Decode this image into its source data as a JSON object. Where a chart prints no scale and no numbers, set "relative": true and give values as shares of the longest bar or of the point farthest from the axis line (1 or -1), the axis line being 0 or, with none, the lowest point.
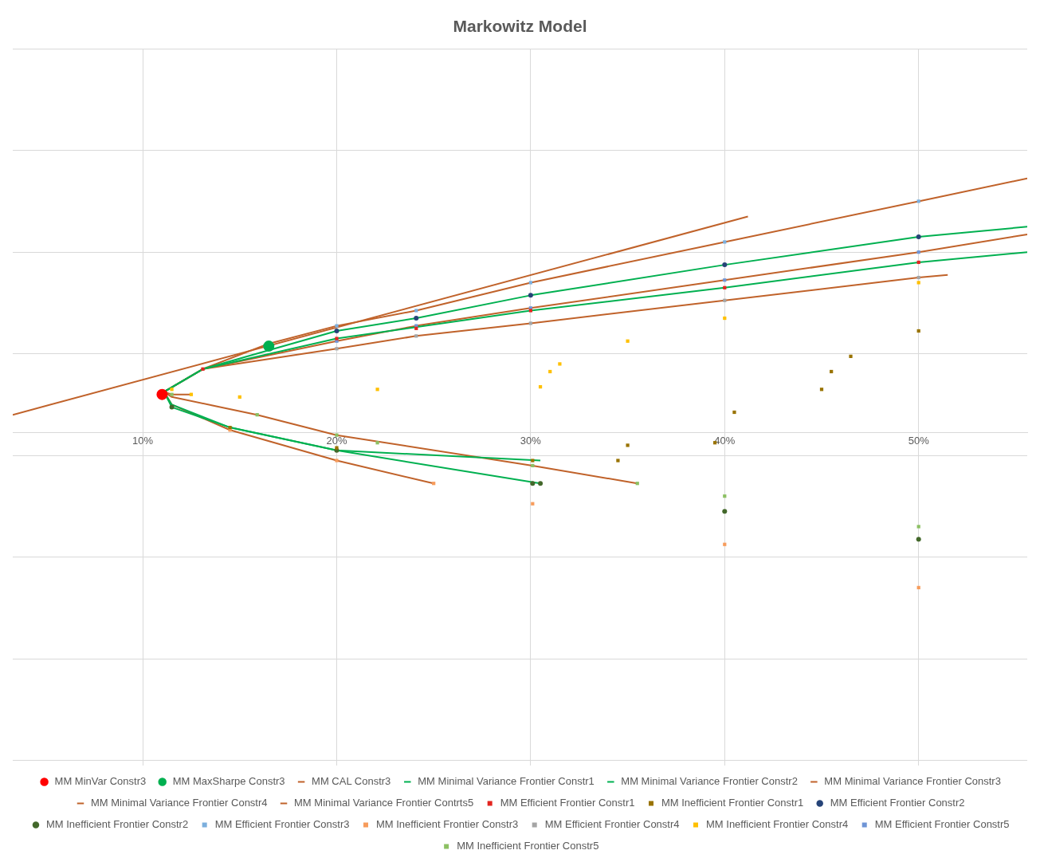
{
  "chart_data": {
    "type": "scatter",
    "title": "Markowitz Model",
    "relative": true,
    "xlim": [
      3.3,
      55.6
    ],
    "xticks": [
      {
        "value": 10,
        "label": "10%"
      },
      {
        "value": 20,
        "label": "20%"
      },
      {
        "value": 30,
        "label": "30%"
      },
      {
        "value": 40,
        "label": "40%"
      },
      {
        "value": 50,
        "label": "50%"
      }
    ],
    "tick_labels": "x",
    "grid": true,
    "legend": "bottom",
    "series": [
      {
        "name": "MM MinVar Constr3",
        "type": "scatter",
        "marker": "circle",
        "color": "#ff0000",
        "x": [
          11.0
        ],
        "values": [
          0.15
        ]
      },
      {
        "name": "MM MaxSharpe Constr3",
        "type": "scatter",
        "marker": "circle",
        "color": "#00b050",
        "x": [
          16.5
        ],
        "values": [
          0.34
        ]
      },
      {
        "name": "MM CAL Constr3",
        "type": "line",
        "line_style": "solid",
        "color": "#c0622a",
        "x": [
          3.3,
          41.2
        ],
        "values": [
          0.07,
          0.85
        ]
      },
      {
        "name": "MM Minimal Variance Frontier Constr1",
        "type": "line",
        "line_style": "solid",
        "color": "#00b050",
        "x": [
          30.5,
          20.0,
          14.5,
          11.5,
          11.1,
          13.1,
          20.0,
          30.0,
          40.0,
          50.0,
          55.6
        ],
        "values": [
          -0.11,
          -0.07,
          0.02,
          0.11,
          0.16,
          0.25,
          0.37,
          0.48,
          0.57,
          0.67,
          0.71
        ]
      },
      {
        "name": "MM Minimal Variance Frontier Constr2",
        "type": "line",
        "line_style": "solid",
        "color": "#00b050",
        "x": [
          30.5,
          20.0,
          14.5,
          11.5,
          11.1,
          13.1,
          20.0,
          24.1,
          30.0,
          40.0,
          50.0,
          55.6
        ],
        "values": [
          -0.2,
          -0.07,
          0.02,
          0.1,
          0.16,
          0.25,
          0.4,
          0.45,
          0.54,
          0.66,
          0.77,
          0.81
        ]
      },
      {
        "name": "MM Minimal Variance Frontier Constr3",
        "type": "line",
        "line_style": "solid",
        "color": "#c0622a",
        "x": [
          25.0,
          20.0,
          14.5,
          11.5,
          11.1,
          13.1,
          16.5,
          20.0,
          24.1,
          30.0,
          40.0,
          50.0,
          55.6
        ],
        "values": [
          -0.2,
          -0.11,
          0.01,
          0.11,
          0.16,
          0.25,
          0.35,
          0.42,
          0.48,
          0.59,
          0.75,
          0.91,
          1.0
        ]
      },
      {
        "name": "MM Minimal Variance Frontier Constr4",
        "type": "line",
        "line_style": "solid",
        "color": "#c0622a",
        "x": [
          12.5,
          11.5,
          11.1,
          13.1,
          20.0,
          24.1,
          30.0,
          40.0,
          50.0,
          51.5
        ],
        "values": [
          0.15,
          0.15,
          0.16,
          0.25,
          0.33,
          0.38,
          0.43,
          0.52,
          0.61,
          0.62
        ]
      },
      {
        "name": "MM Minimal Variance Frontier Contrts5",
        "type": "line",
        "line_style": "solid",
        "color": "#c0622a",
        "x": [
          35.5,
          30.1,
          20.0,
          15.9,
          11.5,
          11.1,
          13.1,
          20.0,
          24.1,
          30.0,
          40.0,
          50.0,
          55.6
        ],
        "values": [
          -0.2,
          -0.13,
          -0.01,
          0.07,
          0.14,
          0.16,
          0.25,
          0.36,
          0.42,
          0.49,
          0.6,
          0.71,
          0.78
        ]
      },
      {
        "name": "MM Efficient Frontier Constr1",
        "type": "scatter",
        "marker": "square",
        "color": "#e3251f",
        "x": [
          13.1,
          20.0,
          24.1,
          30.0,
          40.0,
          50.0
        ],
        "values": [
          0.25,
          0.37,
          0.41,
          0.48,
          0.57,
          0.67
        ]
      },
      {
        "name": "MM Inefficient Frontier Constr1",
        "type": "scatter",
        "marker": "square",
        "color": "#997300",
        "x": [
          14.5,
          20.0,
          30.1,
          34.5,
          35.0,
          39.5,
          40.5,
          45.0,
          45.5,
          46.5,
          50.0
        ],
        "values": [
          0.02,
          -0.06,
          -0.11,
          -0.11,
          -0.05,
          -0.04,
          0.08,
          0.17,
          0.24,
          0.3,
          0.4
        ]
      },
      {
        "name": "MM Efficient Frontier Constr2",
        "type": "scatter",
        "marker": "circle",
        "color": "#264478",
        "x": [
          20.0,
          24.1,
          30.0,
          40.0,
          50.0
        ],
        "values": [
          0.4,
          0.45,
          0.54,
          0.66,
          0.77
        ]
      },
      {
        "name": "MM Inefficient Frontier Constr2",
        "type": "scatter",
        "marker": "circle",
        "color": "#43682b",
        "x": [
          11.5,
          20.0,
          30.1,
          30.5,
          40.0,
          50.0
        ],
        "values": [
          0.1,
          -0.07,
          -0.2,
          -0.2,
          -0.31,
          -0.42
        ]
      },
      {
        "name": "MM Efficient Frontier Constr3",
        "type": "scatter",
        "marker": "square",
        "color": "#7cafdd",
        "x": [
          20.0,
          24.1,
          30.0,
          40.0,
          50.0
        ],
        "values": [
          0.42,
          0.48,
          0.59,
          0.75,
          0.91
        ]
      },
      {
        "name": "MM Inefficient Frontier Constr3",
        "type": "scatter",
        "marker": "square",
        "color": "#f79c5c",
        "x": [
          14.5,
          20.0,
          25.0,
          30.1,
          40.0,
          50.0
        ],
        "values": [
          0.01,
          -0.11,
          -0.2,
          -0.28,
          -0.44,
          -0.61
        ]
      },
      {
        "name": "MM Efficient Frontier Constr4",
        "type": "scatter",
        "marker": "square",
        "color": "#a5a5a5",
        "x": [
          20.0,
          24.1,
          30.0,
          40.0,
          50.0
        ],
        "values": [
          0.33,
          0.38,
          0.43,
          0.52,
          0.61
        ]
      },
      {
        "name": "MM Inefficient Frontier Constr4",
        "type": "scatter",
        "marker": "square",
        "color": "#ffc000",
        "x": [
          11.5,
          12.5,
          15.0,
          22.1,
          30.5,
          31.0,
          31.5,
          35.0,
          40.0,
          50.0
        ],
        "values": [
          0.17,
          0.15,
          0.14,
          0.17,
          0.18,
          0.24,
          0.27,
          0.36,
          0.45,
          0.59
        ]
      },
      {
        "name": "MM Efficient Frontier Constr5",
        "type": "scatter",
        "marker": "square",
        "color": "#6f95d6",
        "x": [
          20.0,
          24.1,
          30.0,
          40.0,
          50.0
        ],
        "values": [
          0.36,
          0.42,
          0.49,
          0.6,
          0.71
        ]
      },
      {
        "name": "MM Inefficient Frontier Constr5",
        "type": "scatter",
        "marker": "square",
        "color": "#8cc063",
        "x": [
          11.5,
          15.9,
          20.0,
          22.1,
          30.1,
          35.5,
          40.0,
          50.0
        ],
        "values": [
          0.15,
          0.07,
          -0.01,
          -0.04,
          -0.13,
          -0.2,
          -0.25,
          -0.37
        ]
      }
    ]
  }
}
